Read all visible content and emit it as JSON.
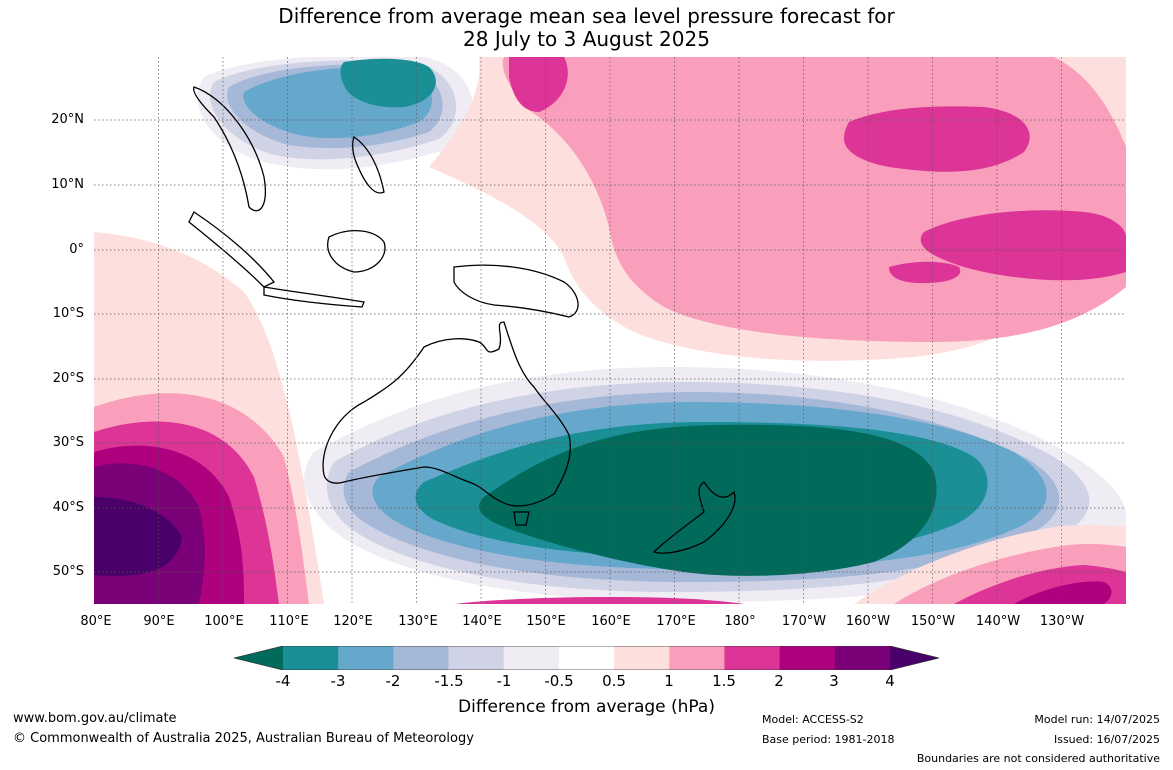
{
  "title": {
    "line1": "Difference from average mean sea level pressure forecast for",
    "line2": "28 July to 3 August 2025"
  },
  "map": {
    "lat_labels": [
      "20°N",
      "10°N",
      "0°",
      "10°S",
      "20°S",
      "30°S",
      "40°S",
      "50°S"
    ],
    "lon_labels": [
      "80°E",
      "90°E",
      "100°E",
      "110°E",
      "120°E",
      "130°E",
      "140°E",
      "150°E",
      "160°E",
      "170°E",
      "180°",
      "170°W",
      "160°W",
      "150°W",
      "140°W",
      "130°W"
    ],
    "anomaly_features": [
      {
        "kind": "low",
        "region": "Tasman Sea / south of Australia and New Zealand",
        "min_value": -4
      },
      {
        "kind": "low",
        "region": "South China Sea / Philippine Sea",
        "min_value": -3
      },
      {
        "kind": "high",
        "region": "Southern Indian Ocean",
        "max_value": 4
      },
      {
        "kind": "high",
        "region": "Central North Pacific",
        "max_value": 2
      },
      {
        "kind": "high",
        "region": "Equatorial Pacific",
        "max_value": 1.5
      },
      {
        "kind": "high",
        "region": "Southern Ocean south of French Polynesia",
        "max_value": 2
      }
    ]
  },
  "colorbar": {
    "levels": [
      "-4",
      "-3",
      "-2",
      "-1.5",
      "-1",
      "-0.5",
      "0.5",
      "1",
      "1.5",
      "2",
      "3",
      "4"
    ],
    "colors": [
      "#006b5b",
      "#1a8f95",
      "#66a8cc",
      "#a6b8d8",
      "#d0d2e6",
      "#efecf4",
      "#ffffff",
      "#fde0dd",
      "#f99fbb",
      "#dd3497",
      "#ae017e",
      "#7a0177",
      "#49006a"
    ],
    "label": "Difference from average (hPa)"
  },
  "footer": {
    "website": "www.bom.gov.au/climate",
    "copyright": "© Commonwealth of Australia 2025, Australian Bureau of Meteorology",
    "model": "Model: ACCESS-S2",
    "base_period": "Base period: 1981-2018",
    "model_run": "Model run: 14/07/2025",
    "issued": "Issued: 16/07/2025",
    "disclaimer": "Boundaries are not considered authoritative"
  }
}
